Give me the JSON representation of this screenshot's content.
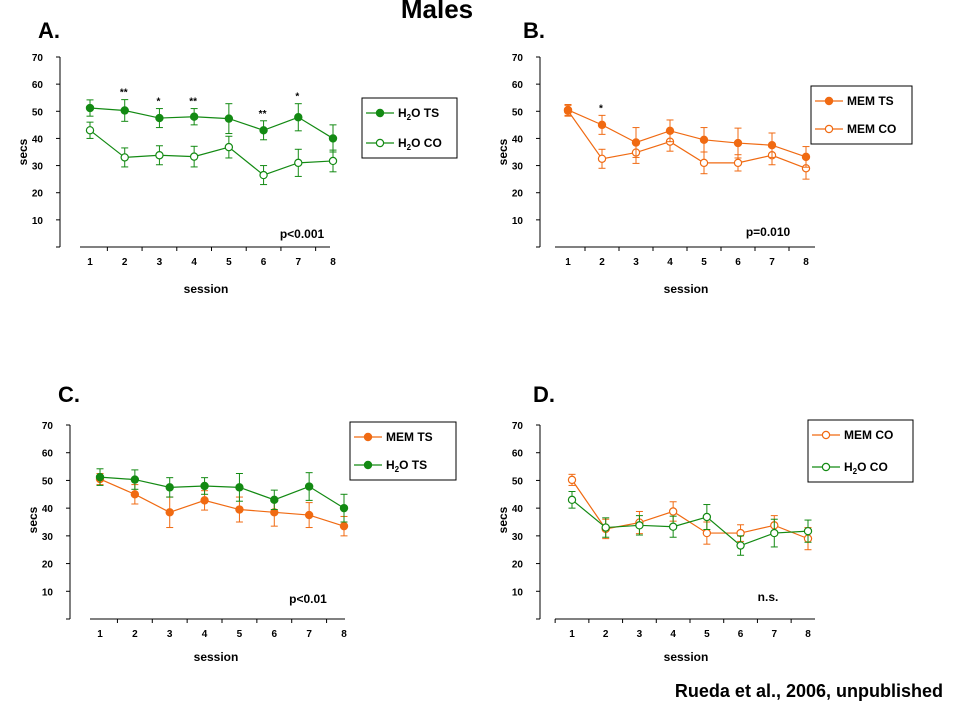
{
  "figure": {
    "title": "Males",
    "credit": "Rueda et al., 2006, unpublished"
  },
  "colors": {
    "green": "#138a13",
    "orange": "#f06a12",
    "axis": "#000000"
  },
  "chart_data": [
    {
      "id": "A",
      "panel_label": "A.",
      "type": "line",
      "xlabel": "session",
      "ylabel": "secs",
      "x": [
        1,
        2,
        3,
        4,
        5,
        6,
        7,
        8
      ],
      "ylim": [
        0,
        70
      ],
      "yticks": [
        10,
        20,
        30,
        40,
        50,
        60,
        70
      ],
      "stat_text": "p<0.001",
      "series": [
        {
          "name": "H2O TS",
          "name_main": "H",
          "name_sub": "2",
          "name_rest": "O TS",
          "color": "green",
          "filled": true,
          "values": [
            51.2,
            50.3,
            47.5,
            48,
            47.3,
            43,
            47.8,
            40
          ],
          "errors": [
            3,
            4,
            3.5,
            3,
            5.5,
            3.5,
            5,
            5
          ]
        },
        {
          "name": "H2O CO",
          "name_main": "H",
          "name_sub": "2",
          "name_rest": "O CO",
          "color": "green",
          "filled": false,
          "values": [
            43,
            33,
            33.8,
            33.3,
            36.8,
            26.5,
            31,
            31.7
          ],
          "errors": [
            3,
            3.5,
            3.5,
            3.8,
            4,
            3.5,
            5,
            4
          ]
        }
      ],
      "annotations": [
        {
          "x": 2,
          "text": "**",
          "series": 0
        },
        {
          "x": 3,
          "text": "*",
          "series": 0
        },
        {
          "x": 4,
          "text": "**",
          "series": 0
        },
        {
          "x": 6,
          "text": "**",
          "series": 0
        },
        {
          "x": 7,
          "text": "*",
          "series": 0
        }
      ]
    },
    {
      "id": "B",
      "panel_label": "B.",
      "type": "line",
      "xlabel": "session",
      "ylabel": "secs",
      "x": [
        1,
        2,
        3,
        4,
        5,
        6,
        7,
        8
      ],
      "ylim": [
        0,
        70
      ],
      "yticks": [
        10,
        20,
        30,
        40,
        50,
        60,
        70
      ],
      "stat_text": "p=0.010",
      "series": [
        {
          "name": "MEM TS",
          "name_main": "MEM TS",
          "name_sub": "",
          "name_rest": "",
          "color": "orange",
          "filled": true,
          "values": [
            50.5,
            45,
            38.5,
            42.8,
            39.5,
            38.3,
            37.5,
            33.2
          ],
          "errors": [
            2,
            3.5,
            5.5,
            4,
            4.5,
            5.5,
            4.5,
            3.8
          ]
        },
        {
          "name": "MEM CO",
          "name_main": "MEM CO",
          "name_sub": "",
          "name_rest": "",
          "color": "orange",
          "filled": false,
          "values": [
            50.2,
            32.5,
            34.8,
            38.8,
            31,
            31,
            33.8,
            29
          ],
          "errors": [
            2,
            3.5,
            4,
            3.5,
            4,
            3,
            3.5,
            4
          ]
        }
      ],
      "annotations": [
        {
          "x": 2,
          "text": "*",
          "series": 0
        }
      ]
    },
    {
      "id": "C",
      "panel_label": "C.",
      "type": "line",
      "xlabel": "session",
      "ylabel": "secs",
      "x": [
        1,
        2,
        3,
        4,
        5,
        6,
        7,
        8
      ],
      "ylim": [
        0,
        70
      ],
      "yticks": [
        10,
        20,
        30,
        40,
        50,
        60,
        70
      ],
      "stat_text": "p<0.01",
      "series": [
        {
          "name": "MEM TS",
          "name_main": "MEM TS",
          "name_sub": "",
          "name_rest": "",
          "color": "orange",
          "filled": true,
          "values": [
            50.5,
            45,
            38.5,
            42.8,
            39.5,
            38.5,
            37.5,
            33.5
          ],
          "errors": [
            2,
            3.5,
            5.5,
            3.5,
            4.5,
            5,
            4.5,
            3.5
          ]
        },
        {
          "name": "H2O TS",
          "name_main": "H",
          "name_sub": "2",
          "name_rest": "O TS",
          "color": "green",
          "filled": true,
          "values": [
            51.2,
            50.3,
            47.5,
            48,
            47.5,
            43,
            47.8,
            40
          ],
          "errors": [
            3,
            3.5,
            3.5,
            3,
            5,
            3.5,
            5,
            5
          ]
        }
      ],
      "annotations": []
    },
    {
      "id": "D",
      "panel_label": "D.",
      "type": "line",
      "xlabel": "session",
      "ylabel": "secs",
      "x": [
        1,
        2,
        3,
        4,
        5,
        6,
        7,
        8
      ],
      "ylim": [
        0,
        70
      ],
      "yticks": [
        10,
        20,
        30,
        40,
        50,
        60,
        70
      ],
      "stat_text": "n.s.",
      "series": [
        {
          "name": "MEM CO",
          "name_main": "MEM CO",
          "name_sub": "",
          "name_rest": "",
          "color": "orange",
          "filled": false,
          "values": [
            50.2,
            32.5,
            34.8,
            38.8,
            31,
            31,
            33.8,
            29
          ],
          "errors": [
            2,
            3.5,
            4,
            3.5,
            4,
            3,
            3.5,
            4
          ]
        },
        {
          "name": "H2O CO",
          "name_main": "H",
          "name_sub": "2",
          "name_rest": "O CO",
          "color": "green",
          "filled": false,
          "values": [
            43,
            33,
            33.8,
            33.3,
            36.8,
            26.5,
            31,
            31.7
          ],
          "errors": [
            3,
            3.5,
            3.5,
            3.8,
            4.5,
            3.5,
            5,
            4
          ]
        }
      ],
      "annotations": []
    }
  ]
}
